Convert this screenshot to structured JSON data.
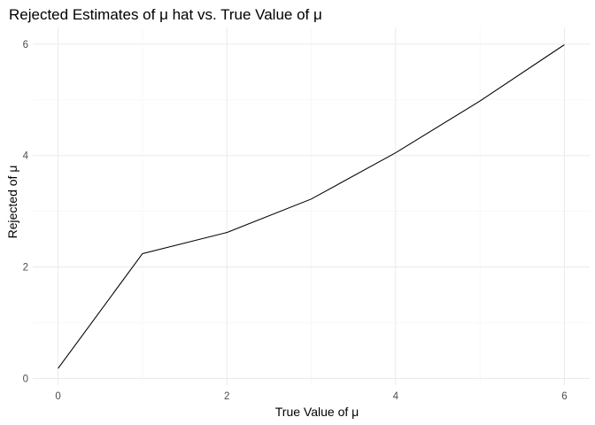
{
  "chart_data": {
    "type": "line",
    "title": "Rejected Estimates of μ hat vs. True Value of μ",
    "xlabel": "True Value of μ",
    "ylabel": "Rejected of μ",
    "x": [
      0,
      1,
      2,
      3,
      4,
      5,
      6
    ],
    "series": [
      {
        "values": [
          0.18,
          2.24,
          2.62,
          3.22,
          4.05,
          4.98,
          5.99
        ]
      }
    ],
    "xlim": [
      -0.3,
      6.3
    ],
    "ylim": [
      -0.12,
      6.3
    ],
    "x_ticks": [
      "0",
      "2",
      "4",
      "6"
    ],
    "y_ticks": [
      "0",
      "2",
      "4",
      "6"
    ],
    "grid": true,
    "legend": "none",
    "line_color": "#000000"
  }
}
